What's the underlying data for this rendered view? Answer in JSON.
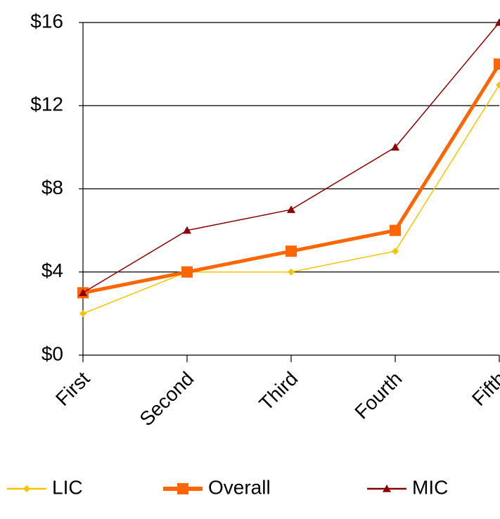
{
  "chart_data": {
    "type": "line",
    "categories": [
      "First",
      "Second",
      "Third",
      "Fourth",
      "Fifth"
    ],
    "series": [
      {
        "name": "LIC",
        "color": "#f5c400",
        "marker": "diamond",
        "values": [
          2,
          4,
          4,
          5,
          13
        ]
      },
      {
        "name": "Overall",
        "color": "#ff6600",
        "marker": "square",
        "values": [
          3,
          4,
          5,
          6,
          14
        ]
      },
      {
        "name": "MIC",
        "color": "#8b0000",
        "marker": "triangle",
        "values": [
          3,
          6,
          7,
          10,
          16
        ]
      }
    ],
    "ylim": [
      0,
      16
    ],
    "yticks": [
      {
        "value": 0,
        "label": "$0"
      },
      {
        "value": 4,
        "label": "$4"
      },
      {
        "value": 8,
        "label": "$8"
      },
      {
        "value": 12,
        "label": "$12"
      },
      {
        "value": 16,
        "label": "$16"
      }
    ],
    "grid": true,
    "legend": "bottom"
  }
}
